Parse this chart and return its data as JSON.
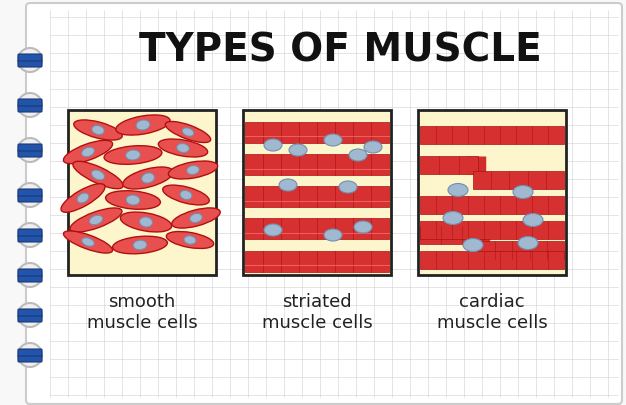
{
  "title": "TYPES OF MUSCLE",
  "title_fontsize": 28,
  "title_fontweight": "bold",
  "labels": [
    "smooth\nmuscle cells",
    "striated\nmuscle cells",
    "cardiac\nmuscle cells"
  ],
  "label_fontsize": 13,
  "background_color": "#f0f0f0",
  "page_bg": "#f8f8f8",
  "page_main_bg": "#ffffff",
  "grid_color": "#d0d0d0",
  "cell_bg": "#fdf5cc",
  "muscle_red": "#d63030",
  "muscle_red_light": "#e85050",
  "muscle_red_dark": "#b01010",
  "nucleus_blue": "#a0b8d0",
  "nucleus_blue_dark": "#7090b0",
  "box_border": "#222222",
  "ring_color": "#f0f0f0",
  "ring_blue": "#2255aa",
  "ring_dark": "#1a3a7a"
}
